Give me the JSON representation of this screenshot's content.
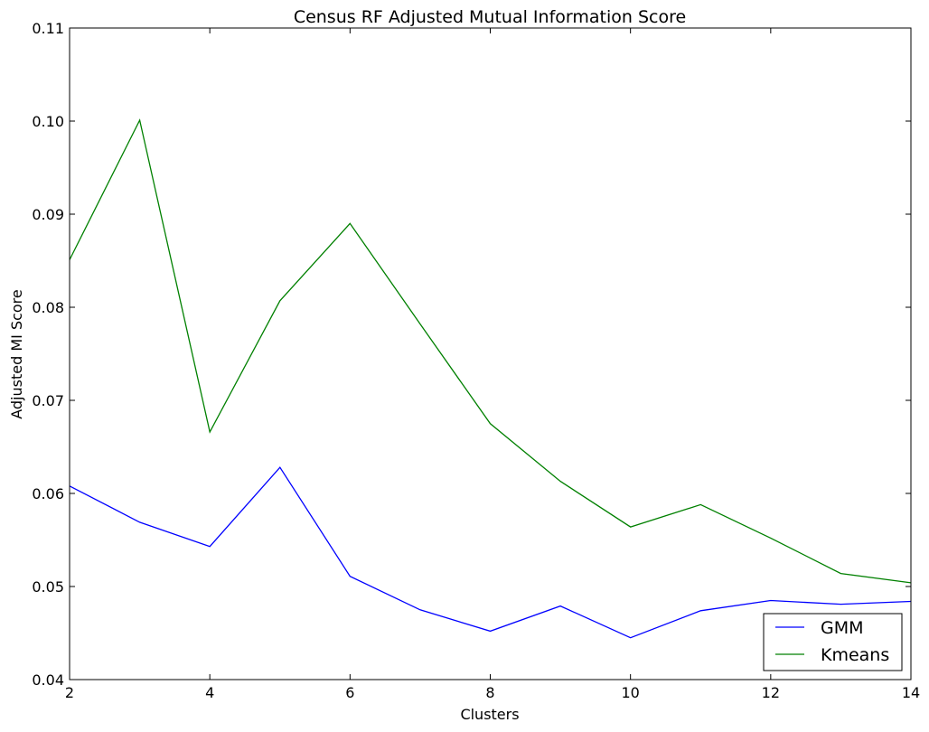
{
  "chart_data": {
    "type": "line",
    "title": "Census RF Adjusted Mutual Information Score",
    "xlabel": "Clusters",
    "ylabel": "Adjusted MI Score",
    "xlim": [
      2,
      14
    ],
    "ylim": [
      0.04,
      0.11
    ],
    "xticks": [
      2,
      4,
      6,
      8,
      10,
      12,
      14
    ],
    "yticks": [
      "0.04",
      "0.05",
      "0.06",
      "0.07",
      "0.08",
      "0.09",
      "0.10",
      "0.11"
    ],
    "grid": false,
    "legend_position": "bottom-right",
    "x": [
      2,
      3,
      4,
      5,
      6,
      7,
      8,
      9,
      10,
      11,
      12,
      13,
      14
    ],
    "series": [
      {
        "name": "GMM",
        "color": "#0000ff",
        "values": [
          0.0608,
          0.0569,
          0.0543,
          0.0628,
          0.0511,
          0.0475,
          0.0452,
          0.0479,
          0.0445,
          0.0474,
          0.0485,
          0.0481,
          0.0484
        ]
      },
      {
        "name": "Kmeans",
        "color": "#008000",
        "values": [
          0.0851,
          0.1001,
          0.0666,
          0.0807,
          0.089,
          0.0782,
          0.0675,
          0.0613,
          0.0564,
          0.0588,
          0.0552,
          0.0514,
          0.0504
        ]
      }
    ]
  }
}
